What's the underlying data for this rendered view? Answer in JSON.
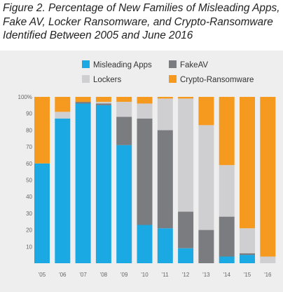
{
  "title": "Figure 2. Percentage of New Families of Misleading Apps, Fake AV, Locker Ransomware, and Crypto-Ransomware Identified Between 2005 and June 2016",
  "colors": {
    "misleading": "#1aa9e3",
    "fakeav": "#7b7c80",
    "lockers": "#cfcfd1",
    "crypto": "#f59a1f"
  },
  "chart_data": {
    "type": "bar",
    "stacked": true,
    "categories": [
      "'05",
      "'06",
      "'07",
      "'08",
      "'09",
      "'10",
      "'11",
      "'12",
      "'13",
      "'14",
      "'15",
      "'16"
    ],
    "ylim": [
      0,
      100
    ],
    "yticks": [
      "",
      "10",
      "20",
      "30",
      "40",
      "50",
      "60",
      "70",
      "80",
      "90",
      "100%"
    ],
    "grid": false,
    "legend_position": "top",
    "series": [
      {
        "name": "Misleading Apps",
        "values": [
          60,
          87,
          96,
          95,
          71,
          23,
          21,
          9,
          0,
          4,
          5,
          0
        ]
      },
      {
        "name": "FakeAV",
        "values": [
          0,
          0,
          1,
          1,
          17,
          64,
          59,
          22,
          20,
          24,
          1,
          0
        ]
      },
      {
        "name": "Lockers",
        "values": [
          0,
          4,
          0,
          1,
          9,
          9,
          19,
          68,
          63,
          31,
          15,
          4
        ]
      },
      {
        "name": "Crypto-Ransomware",
        "values": [
          40,
          9,
          3,
          3,
          3,
          4,
          1,
          1,
          17,
          41,
          79,
          96
        ]
      }
    ]
  }
}
